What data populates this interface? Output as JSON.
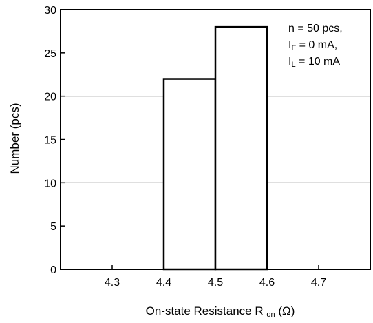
{
  "chart_data": {
    "type": "bar",
    "xlabel": {
      "main": "On-state Resistance  R",
      "subscript": "on",
      "unit": " (Ω)"
    },
    "ylabel": "Number  (pcs)",
    "xlim": [
      4.2,
      4.8
    ],
    "ylim": [
      0,
      30
    ],
    "x_ticks": [
      "4.3",
      "4.4",
      "4.5",
      "4.6",
      "4.7"
    ],
    "y_ticks": [
      "0",
      "5",
      "10",
      "15",
      "20",
      "25",
      "30"
    ],
    "grid": {
      "horizontal_at": [
        10,
        20
      ],
      "vertical": false
    },
    "bins": [
      {
        "from": 4.4,
        "to": 4.5,
        "value": 22
      },
      {
        "from": 4.5,
        "to": 4.6,
        "value": 28
      }
    ],
    "annotation": [
      {
        "main": "n = 50 pcs,",
        "subscript": "",
        "suffix": ""
      },
      {
        "main": "I",
        "subscript": "F",
        "suffix": " = 0 mA,"
      },
      {
        "main": "I",
        "subscript": "L",
        "suffix": " = 10 mA"
      }
    ],
    "annotation_placement": "top-right"
  }
}
